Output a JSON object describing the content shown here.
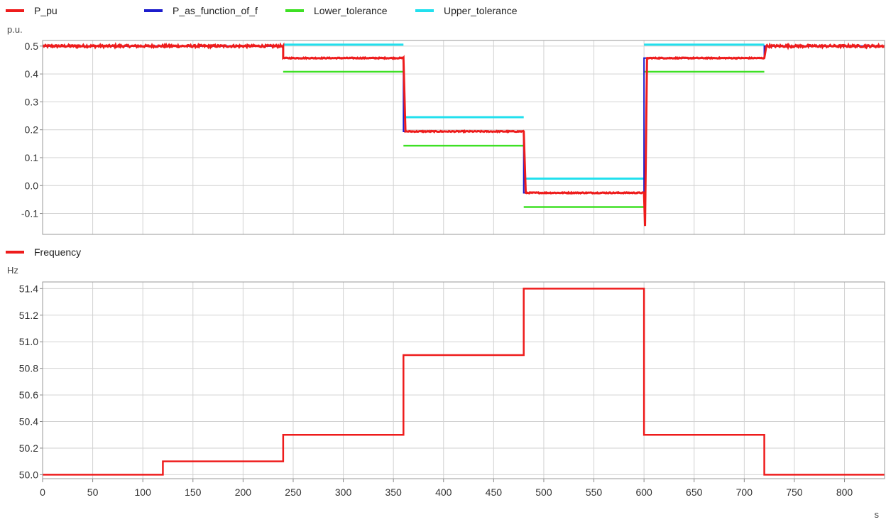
{
  "chart_data": [
    {
      "type": "line",
      "ylabel": "p.u.",
      "xlim": [
        0,
        840
      ],
      "ylim": [
        -0.175,
        0.52
      ],
      "yticks": [
        -0.1,
        0.0,
        0.1,
        0.2,
        0.3,
        0.4,
        0.5
      ],
      "ytick_labels": [
        "-0.1",
        "0.0",
        "0.1",
        "0.2",
        "0.3",
        "0.4",
        "0.5"
      ],
      "xticks": [
        0,
        50,
        100,
        150,
        200,
        250,
        300,
        350,
        400,
        450,
        500,
        550,
        600,
        650,
        700,
        750,
        800
      ],
      "grid": true,
      "legend_position": "top-left",
      "series": [
        {
          "name": "Upper_tolerance",
          "color": "#22e0ee",
          "width": 3,
          "segments": [
            [
              [
                240,
                0.505
              ],
              [
                360,
                0.505
              ]
            ],
            [
              [
                360,
                0.245
              ],
              [
                480,
                0.245
              ]
            ],
            [
              [
                480,
                0.025
              ],
              [
                600,
                0.025
              ]
            ],
            [
              [
                600,
                0.505
              ],
              [
                720,
                0.505
              ]
            ]
          ]
        },
        {
          "name": "Lower_tolerance",
          "color": "#3ee024",
          "width": 2.5,
          "segments": [
            [
              [
                240,
                0.408
              ],
              [
                360,
                0.408
              ]
            ],
            [
              [
                360,
                0.143
              ],
              [
                480,
                0.143
              ]
            ],
            [
              [
                480,
                -0.077
              ],
              [
                600,
                -0.077
              ]
            ],
            [
              [
                600,
                0.408
              ],
              [
                720,
                0.408
              ]
            ]
          ]
        },
        {
          "name": "P_as_function_of_f",
          "color": "#1c1ccc",
          "width": 2,
          "x": [
            0,
            240,
            240,
            360,
            360,
            480,
            480,
            600,
            600,
            720,
            720,
            840
          ],
          "y": [
            0.5,
            0.5,
            0.457,
            0.457,
            0.194,
            0.194,
            -0.026,
            -0.026,
            0.457,
            0.457,
            0.5,
            0.5
          ]
        },
        {
          "name": "P_pu",
          "color": "#ee1c1c",
          "width": 3,
          "noisy": true,
          "x": [
            0,
            240,
            240,
            360,
            362,
            480,
            482,
            600,
            601,
            603,
            720,
            722,
            840
          ],
          "y": [
            0.5,
            0.5,
            0.457,
            0.457,
            0.194,
            0.194,
            -0.026,
            -0.026,
            -0.145,
            0.457,
            0.457,
            0.5,
            0.5
          ]
        }
      ]
    },
    {
      "type": "line",
      "ylabel": "Hz",
      "xlabel": "s",
      "xlim": [
        0,
        840
      ],
      "ylim": [
        49.97,
        51.45
      ],
      "yticks": [
        50.0,
        50.2,
        50.4,
        50.6,
        50.8,
        51.0,
        51.2,
        51.4
      ],
      "ytick_labels": [
        "50.0",
        "50.2",
        "50.4",
        "50.6",
        "50.8",
        "51.0",
        "51.2",
        "51.4"
      ],
      "xticks": [
        0,
        50,
        100,
        150,
        200,
        250,
        300,
        350,
        400,
        450,
        500,
        550,
        600,
        650,
        700,
        750,
        800
      ],
      "xtick_labels": [
        "0",
        "50",
        "100",
        "150",
        "200",
        "250",
        "300",
        "350",
        "400",
        "450",
        "500",
        "550",
        "600",
        "650",
        "700",
        "750",
        "800"
      ],
      "grid": true,
      "legend_position": "top-left",
      "series": [
        {
          "name": "Frequency",
          "color": "#ee1c1c",
          "width": 2.5,
          "x": [
            0,
            120,
            120,
            240,
            240,
            360,
            360,
            480,
            480,
            600,
            600,
            720,
            720,
            840
          ],
          "y": [
            50.0,
            50.0,
            50.1,
            50.1,
            50.3,
            50.3,
            50.9,
            50.9,
            51.4,
            51.4,
            50.3,
            50.3,
            50.0,
            50.0
          ]
        }
      ]
    }
  ]
}
